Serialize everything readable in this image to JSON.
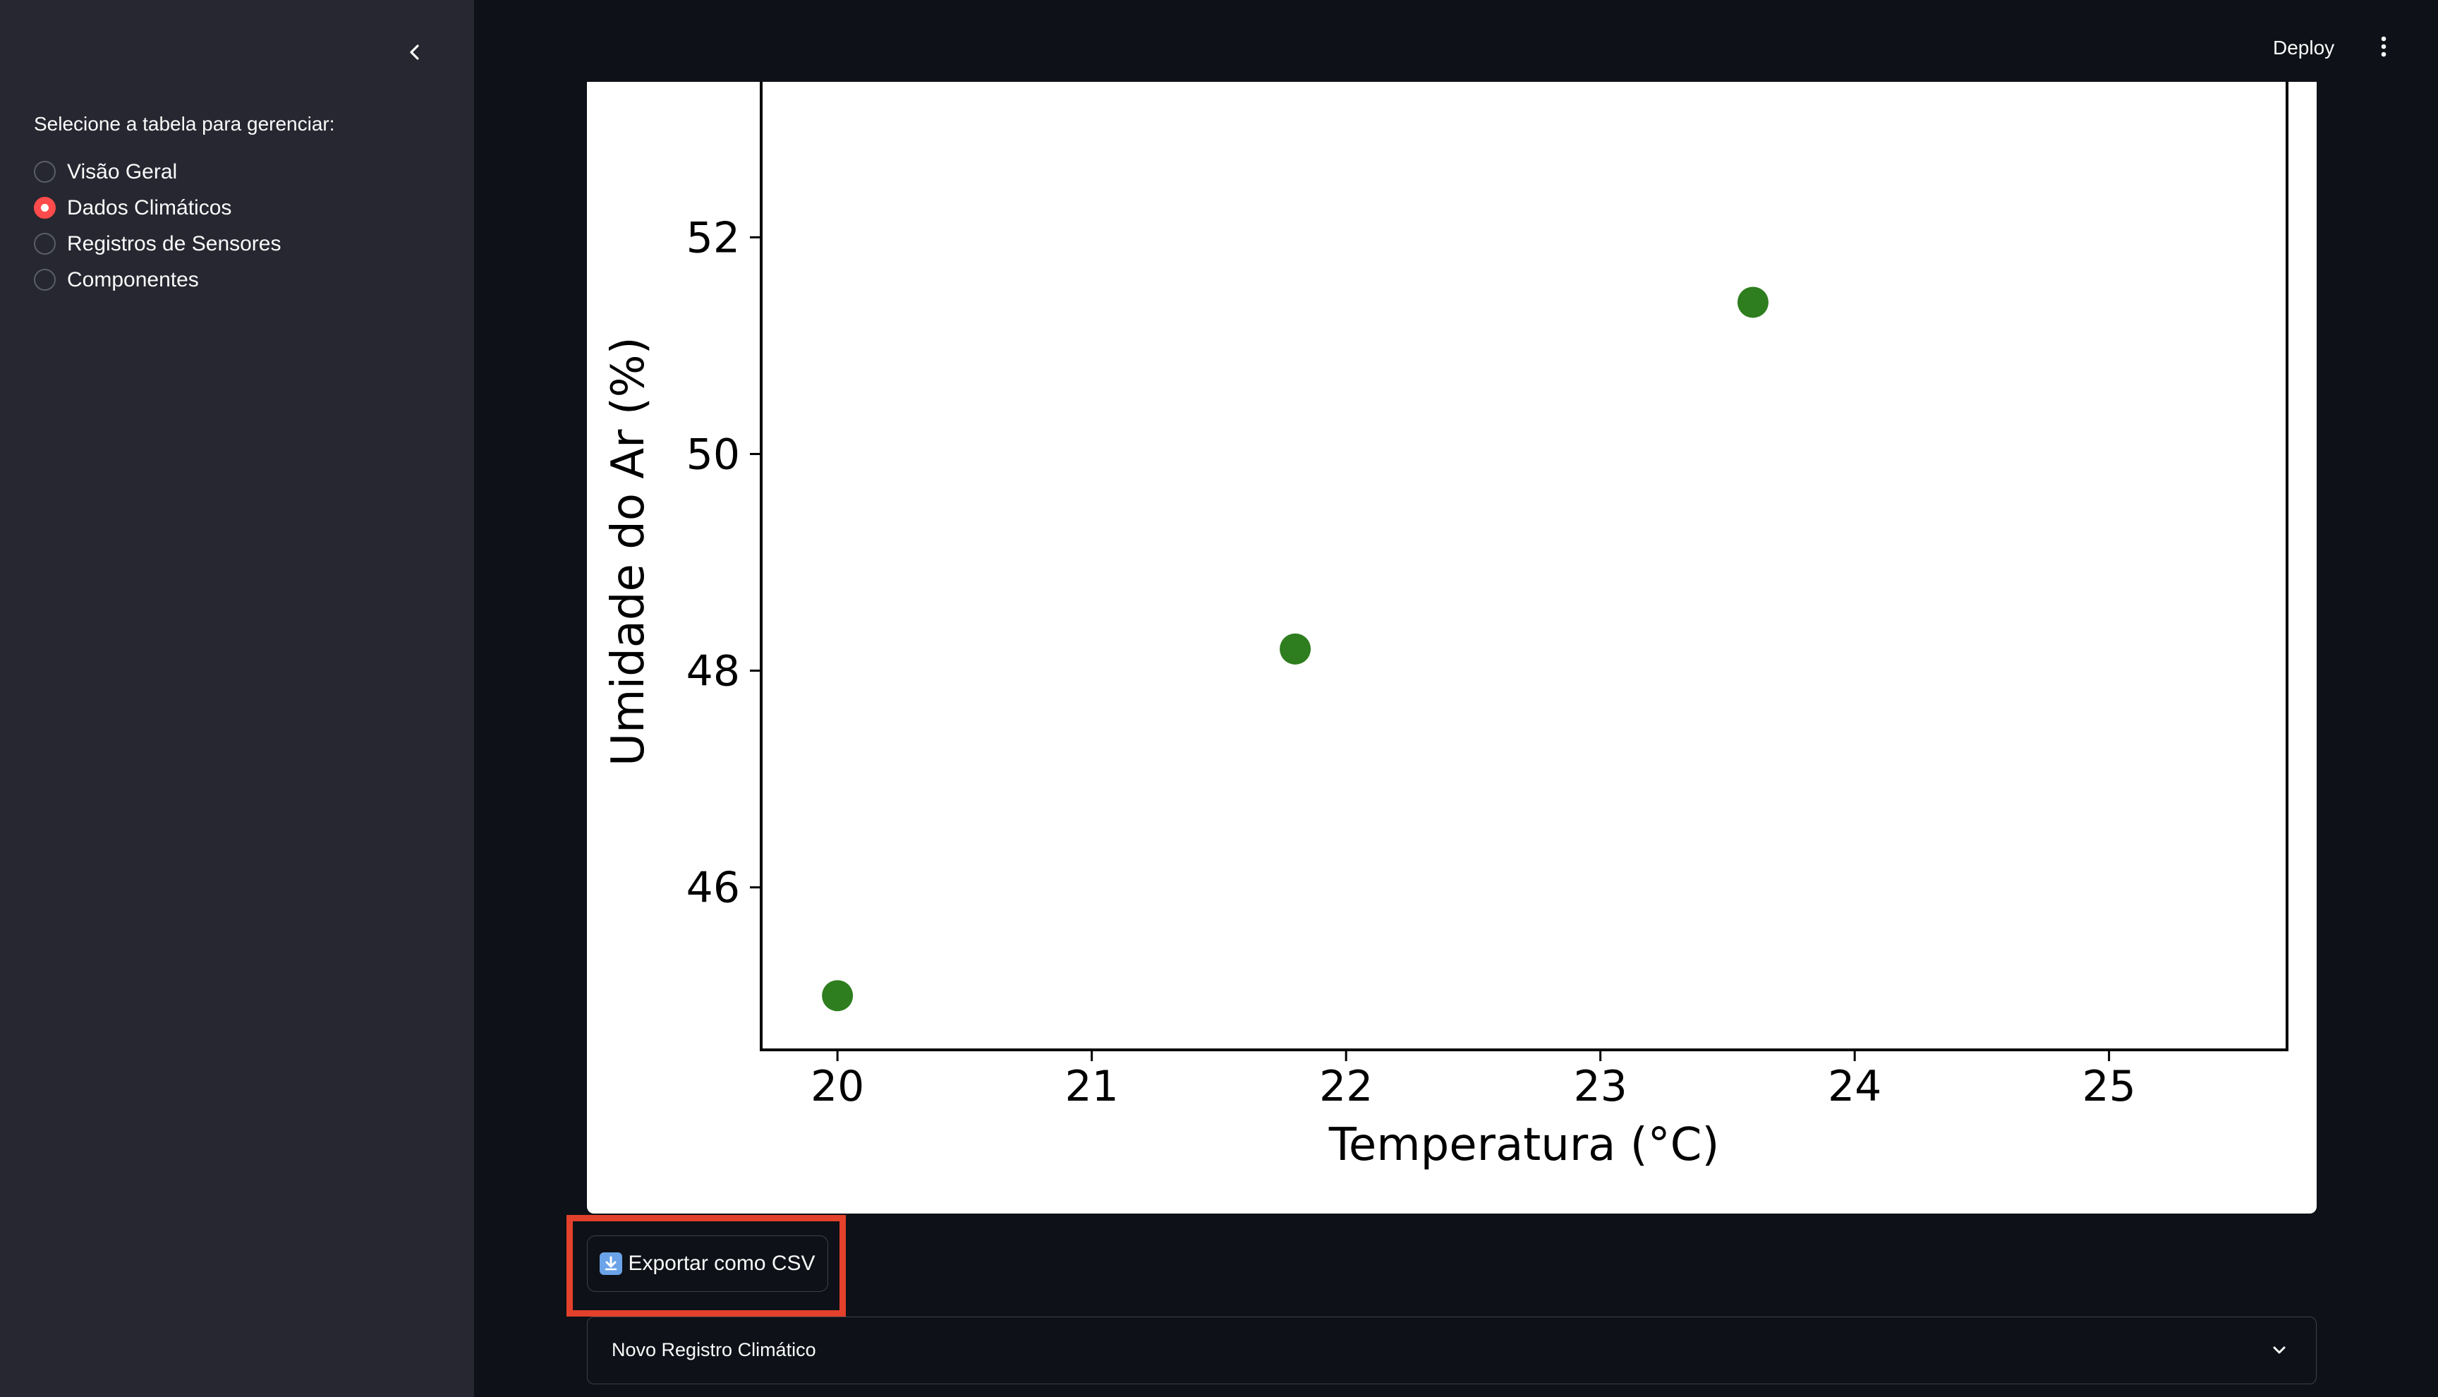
{
  "sidebar": {
    "collapse_icon": "chevron-left-icon",
    "radio_label": "Selecione a tabela para gerenciar:",
    "options": [
      {
        "label": "Visão Geral",
        "selected": false
      },
      {
        "label": "Dados Climáticos",
        "selected": true
      },
      {
        "label": "Registros de Sensores",
        "selected": false
      },
      {
        "label": "Componentes",
        "selected": false
      }
    ]
  },
  "header": {
    "deploy_label": "Deploy",
    "menu_icon": "vertical-dots-icon"
  },
  "colors": {
    "accent": "#ff4b4b",
    "point_color": "#2e7d1e",
    "highlight": "#e3412b"
  },
  "chart_data": {
    "type": "scatter",
    "xlabel": "Temperatura (°C)",
    "ylabel": "Umidade do Ar (%)",
    "xlim": [
      19.7,
      25.7
    ],
    "ylim": [
      44.5,
      53.5
    ],
    "xticks": [
      20,
      21,
      22,
      23,
      24,
      25
    ],
    "yticks": [
      46,
      48,
      50,
      52
    ],
    "points": [
      {
        "x": 20.0,
        "y": 45.0
      },
      {
        "x": 21.8,
        "y": 48.2
      },
      {
        "x": 23.6,
        "y": 51.4
      }
    ],
    "grid": false
  },
  "actions": {
    "export_icon": "download-icon",
    "export_label": "Exportar como CSV"
  },
  "expander": {
    "title": "Novo Registro Climático",
    "chevron_icon": "chevron-down-icon"
  }
}
